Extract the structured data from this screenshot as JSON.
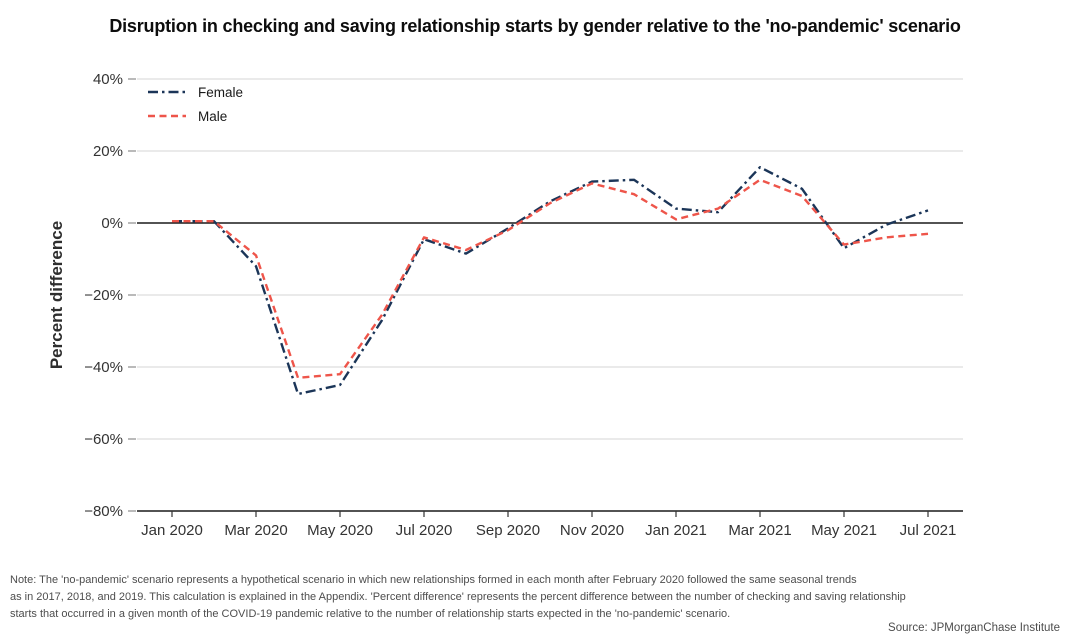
{
  "title": "Disruption in checking and saving relationship starts by gender relative to the 'no-pandemic' scenario",
  "chart_data": {
    "type": "line",
    "title": "Disruption in checking and saving relationship starts by gender relative to the 'no-pandemic' scenario",
    "xlabel": "",
    "ylabel": "Percent difference",
    "ylim": [
      -80,
      40
    ],
    "grid": true,
    "zero_line": true,
    "legend_position": "upper-left",
    "x": [
      "Jan 2020",
      "Feb 2020",
      "Mar 2020",
      "Apr 2020",
      "May 2020",
      "Jun 2020",
      "Jul 2020",
      "Aug 2020",
      "Sep 2020",
      "Oct 2020",
      "Nov 2020",
      "Dec 2020",
      "Jan 2021",
      "Feb 2021",
      "Mar 2021",
      "Apr 2021",
      "May 2021",
      "Jun 2021",
      "Jul 2021"
    ],
    "series": [
      {
        "name": "Female",
        "color": "#1b3558",
        "style": "dashdot",
        "values": [
          0.5,
          0.5,
          -12,
          -47.5,
          -45,
          -27,
          -4.5,
          -8.5,
          -1.5,
          6,
          11.5,
          12,
          4,
          3,
          15.5,
          9.5,
          -7,
          -0.5,
          3.5
        ]
      },
      {
        "name": "Male",
        "color": "#ee554a",
        "style": "dashed",
        "values": [
          0.5,
          0.5,
          -9,
          -43,
          -42,
          -25.5,
          -4,
          -7.5,
          -2,
          5.5,
          11,
          8,
          1,
          4,
          12,
          7.5,
          -6,
          -4,
          -3
        ]
      }
    ],
    "yticks": [
      {
        "v": 40,
        "label": "40%"
      },
      {
        "v": 20,
        "label": "20%"
      },
      {
        "v": 0,
        "label": "0%"
      },
      {
        "v": -20,
        "label": "−20%"
      },
      {
        "v": -40,
        "label": "−40%"
      },
      {
        "v": -60,
        "label": "−60%"
      },
      {
        "v": -80,
        "label": "−80%"
      }
    ],
    "xticks": [
      {
        "i": 0,
        "label": "Jan 2020"
      },
      {
        "i": 2,
        "label": "Mar 2020"
      },
      {
        "i": 4,
        "label": "May 2020"
      },
      {
        "i": 6,
        "label": "Jul 2020"
      },
      {
        "i": 8,
        "label": "Sep 2020"
      },
      {
        "i": 10,
        "label": "Nov 2020"
      },
      {
        "i": 12,
        "label": "Jan 2021"
      },
      {
        "i": 14,
        "label": "Mar 2021"
      },
      {
        "i": 16,
        "label": "May 2021"
      },
      {
        "i": 18,
        "label": "Jul 2021"
      }
    ],
    "colors": {
      "gridline": "#d4d4d4",
      "axis": "#1a1a1a",
      "tick": "#8c8c8c",
      "tick_label": "#333333"
    }
  },
  "note": {
    "lines": [
      "Note: The 'no-pandemic' scenario represents a hypothetical scenario in which new relationships formed in each month after February 2020 followed the same seasonal trends",
      "as in 2017, 2018, and 2019. This calculation is explained in the Appendix. 'Percent difference' represents the percent difference between the number of checking and saving relationship",
      "starts that occurred in a given month of the COVID-19 pandemic relative to the number of relationship starts expected in the 'no-pandemic' scenario."
    ]
  },
  "source": "Source: JPMorganChase Institute"
}
